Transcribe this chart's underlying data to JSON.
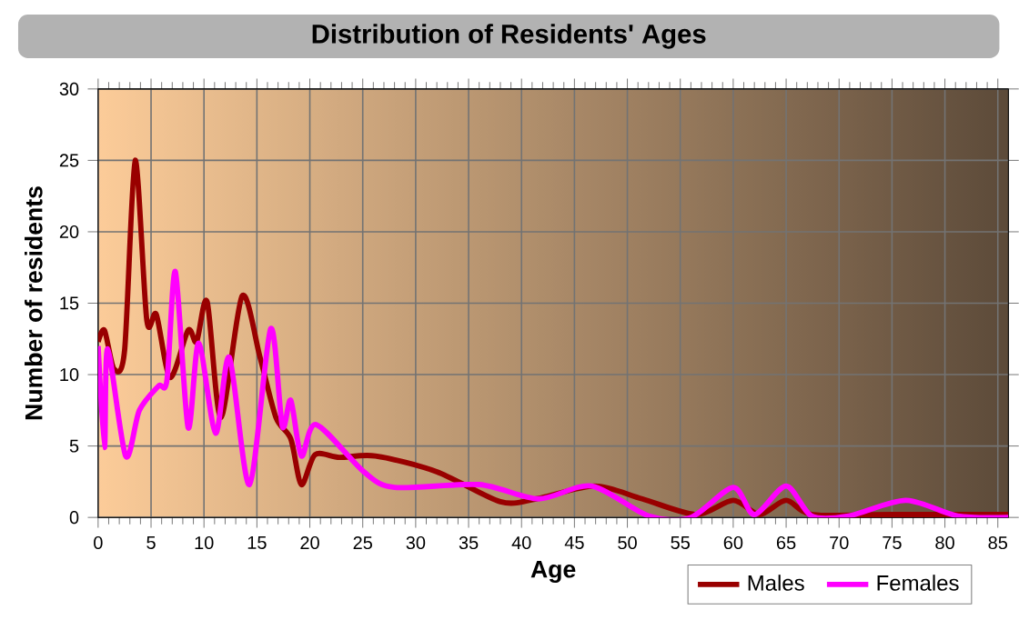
{
  "chart_data": {
    "type": "line",
    "title": "Distribution of Residents' Ages",
    "xlabel": "Age",
    "ylabel": "Number of residents",
    "xlim": [
      0,
      86
    ],
    "ylim": [
      0,
      30
    ],
    "xticks": [
      0,
      5,
      10,
      15,
      20,
      25,
      30,
      35,
      40,
      45,
      50,
      55,
      60,
      65,
      70,
      75,
      80,
      85
    ],
    "yticks": [
      0,
      5,
      10,
      15,
      20,
      25,
      30
    ],
    "grid": true,
    "legend": "bottom right",
    "marker": "none",
    "line_style": "solid",
    "series": [
      {
        "name": "Males",
        "color": "#990000",
        "x": [
          0,
          0.6,
          1.5,
          2.5,
          3.5,
          4.6,
          5.5,
          6.8,
          8.5,
          9.3,
          10.3,
          11.6,
          13.6,
          15.3,
          16.8,
          18.2,
          19.2,
          20.5,
          22.8,
          26.2,
          32,
          38,
          41.4,
          46.9,
          51.4,
          56.5,
          60,
          62.5,
          65,
          67.5,
          75,
          86
        ],
        "values": [
          12.3,
          13.1,
          10.4,
          11.7,
          25,
          13.8,
          14.2,
          9.8,
          13.1,
          12.3,
          15.1,
          7,
          15.5,
          11.2,
          7,
          5.5,
          2.3,
          4.4,
          4.2,
          4.3,
          3.2,
          1.1,
          1.3,
          2.2,
          1.3,
          0.2,
          1.2,
          0.2,
          1.2,
          0.2,
          0.2,
          0.2
        ]
      },
      {
        "name": "Females",
        "color": "#ff00ff",
        "x": [
          0,
          0.6,
          0.9,
          2.6,
          3.9,
          5.7,
          6.5,
          7.3,
          8.5,
          9.5,
          11.1,
          12.4,
          14.3,
          16.3,
          17.4,
          18.2,
          19.2,
          20.6,
          25.1,
          28,
          36,
          41.6,
          46.6,
          52,
          56,
          60,
          62,
          65,
          67.4,
          70.9,
          76.3,
          81.2,
          86
        ],
        "values": [
          12,
          4.9,
          11.8,
          4.3,
          7.5,
          9.2,
          9.6,
          17.2,
          6.3,
          12.2,
          5.9,
          11.2,
          2.3,
          13.2,
          6.4,
          8.2,
          4.3,
          6.5,
          3.2,
          2.1,
          2.3,
          1.3,
          2.2,
          0.1,
          0,
          2.1,
          0.2,
          2.2,
          0.1,
          0.1,
          1.2,
          0.1,
          0
        ]
      }
    ]
  }
}
